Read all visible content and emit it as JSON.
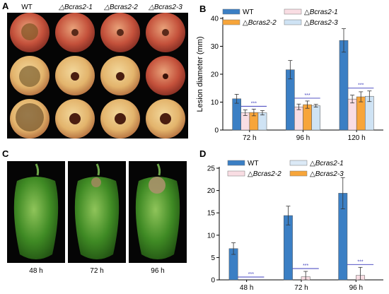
{
  "panels": {
    "A": {
      "letter": "A",
      "column_labels": [
        "WT",
        "△Bcras2-1",
        "△Bcras2-2",
        "△Bcras2-3"
      ]
    },
    "C": {
      "letter": "C",
      "photo_labels": [
        "48 h",
        "72 h",
        "96 h"
      ]
    },
    "B": {
      "letter": "B"
    },
    "D": {
      "letter": "D"
    }
  },
  "colors": {
    "WT": "#3b7fc4",
    "Bcras2-1": "#f9dde3",
    "Bcras2-2": "#f7a53a",
    "Bcras2-3": "#cfe3f4",
    "D_Bcras2-1": "#dbe9f6",
    "D_Bcras2-2": "#f9dde3",
    "D_Bcras2-3": "#f7a53a",
    "sig_line": "#3d3dbd"
  },
  "chart_data": [
    {
      "panel": "B",
      "type": "bar",
      "ylabel": "Lesion diameter (mm)",
      "ylim": [
        0,
        40
      ],
      "yticks": [
        0,
        10,
        20,
        30,
        40
      ],
      "categories": [
        "72 h",
        "96 h",
        "120 h"
      ],
      "legend": [
        "WT",
        "△Bcras2-1",
        "△Bcras2-2",
        "△Bcras2-3"
      ],
      "series": [
        {
          "name": "WT",
          "values": [
            11.2,
            21.6,
            32.1
          ],
          "errors": [
            1.6,
            3.3,
            4.2
          ]
        },
        {
          "name": "△Bcras2-1",
          "values": [
            6.2,
            8.3,
            11.1
          ],
          "errors": [
            1.0,
            1.0,
            1.4
          ]
        },
        {
          "name": "△Bcras2-2",
          "values": [
            6.3,
            9.1,
            11.9
          ],
          "errors": [
            1.2,
            1.3,
            1.8
          ]
        },
        {
          "name": "△Bcras2-3",
          "values": [
            6.2,
            8.7,
            12.1
          ],
          "errors": [
            0.8,
            0.5,
            1.9
          ]
        }
      ],
      "significance": "***"
    },
    {
      "panel": "D",
      "type": "bar",
      "ylim": [
        0,
        25
      ],
      "yticks": [
        0,
        5,
        10,
        15,
        20,
        25
      ],
      "categories": [
        "48 h",
        "72 h",
        "96 h"
      ],
      "legend": [
        "WT",
        "△Bcras2-1",
        "△Bcras2-2",
        "△Bcras2-3"
      ],
      "series": [
        {
          "name": "WT",
          "values": [
            7.0,
            14.4,
            19.4
          ],
          "errors": [
            1.3,
            2.1,
            3.5
          ]
        },
        {
          "name": "△Bcras2-1",
          "values": [
            0,
            0,
            0
          ],
          "errors": [
            0,
            0,
            0
          ]
        },
        {
          "name": "△Bcras2-2",
          "values": [
            0,
            0.7,
            1.0
          ],
          "errors": [
            0,
            1.2,
            1.8
          ]
        },
        {
          "name": "△Bcras2-3",
          "values": [
            0,
            0,
            0
          ],
          "errors": [
            0,
            0,
            0
          ]
        }
      ],
      "significance": "***"
    }
  ]
}
